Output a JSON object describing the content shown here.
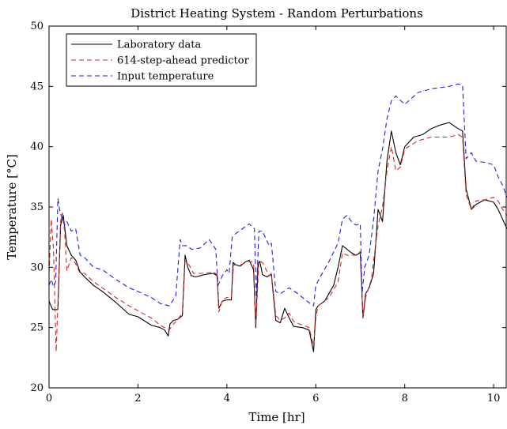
{
  "chart_data": {
    "type": "line",
    "title": "District Heating System - Random Perturbations",
    "xlabel": "Time [hr]",
    "ylabel": "Temperature [°C]",
    "xlim": [
      0,
      10.3
    ],
    "ylim": [
      20,
      50
    ],
    "xticks": [
      0,
      2,
      4,
      6,
      8,
      10
    ],
    "yticks": [
      20,
      25,
      30,
      35,
      40,
      45,
      50
    ],
    "xtick_labels": [
      "0",
      "2",
      "4",
      "6",
      "8",
      "10"
    ],
    "ytick_labels": [
      "20",
      "25",
      "30",
      "35",
      "40",
      "45",
      "50"
    ],
    "grid": false,
    "legend_position": "top-left",
    "series": [
      {
        "name": "Laboratory data",
        "color": "#000000",
        "style": "solid",
        "x": [
          0,
          0.08,
          0.2,
          0.26,
          0.32,
          0.4,
          0.5,
          0.6,
          0.7,
          0.8,
          1.0,
          1.2,
          1.5,
          1.8,
          2.0,
          2.3,
          2.5,
          2.6,
          2.68,
          2.72,
          2.8,
          2.9,
          3.0,
          3.06,
          3.12,
          3.2,
          3.3,
          3.5,
          3.7,
          3.78,
          3.82,
          3.9,
          4.0,
          4.1,
          4.14,
          4.2,
          4.3,
          4.4,
          4.5,
          4.6,
          4.65,
          4.7,
          4.74,
          4.8,
          4.9,
          5.0,
          5.1,
          5.2,
          5.3,
          5.4,
          5.5,
          5.7,
          5.85,
          5.95,
          6.0,
          6.05,
          6.2,
          6.4,
          6.5,
          6.6,
          6.7,
          6.8,
          6.9,
          7.0,
          7.06,
          7.12,
          7.2,
          7.3,
          7.4,
          7.5,
          7.6,
          7.7,
          7.8,
          7.9,
          8.0,
          8.2,
          8.4,
          8.6,
          8.8,
          9.0,
          9.2,
          9.3,
          9.38,
          9.5,
          9.6,
          9.8,
          10.0,
          10.1,
          10.2,
          10.3
        ],
        "values": [
          27.2,
          26.5,
          26.5,
          33.5,
          34.3,
          31.8,
          31.0,
          30.6,
          29.6,
          29.2,
          28.5,
          28.0,
          27.1,
          26.1,
          25.9,
          25.2,
          25.0,
          24.8,
          24.3,
          25.3,
          25.6,
          25.7,
          26.0,
          31.0,
          30.0,
          29.3,
          29.2,
          29.4,
          29.5,
          29.3,
          26.6,
          27.2,
          27.3,
          27.3,
          30.4,
          30.2,
          30.1,
          30.4,
          30.6,
          29.8,
          25.0,
          30.3,
          30.5,
          29.4,
          29.2,
          29.4,
          25.6,
          25.4,
          26.6,
          25.8,
          25.1,
          25.0,
          24.8,
          23.0,
          26.5,
          26.8,
          27.2,
          28.5,
          30.0,
          31.8,
          31.5,
          31.2,
          31.0,
          31.2,
          25.8,
          27.8,
          28.3,
          29.5,
          34.8,
          33.8,
          38.8,
          41.3,
          39.5,
          38.5,
          40.0,
          40.8,
          41.0,
          41.5,
          41.8,
          42.0,
          41.5,
          41.3,
          36.5,
          34.8,
          35.2,
          35.6,
          35.4,
          34.8,
          34.0,
          33.2
        ]
      },
      {
        "name": "614-step-ahead predictor",
        "color": "#d62728",
        "style": "dashed",
        "x": [
          0,
          0.05,
          0.1,
          0.16,
          0.2,
          0.26,
          0.3,
          0.35,
          0.4,
          0.5,
          0.6,
          0.7,
          0.8,
          1.0,
          1.2,
          1.5,
          1.8,
          2.0,
          2.3,
          2.5,
          2.7,
          2.8,
          2.9,
          3.0,
          3.06,
          3.15,
          3.25,
          3.5,
          3.7,
          3.78,
          3.82,
          3.9,
          4.0,
          4.1,
          4.15,
          4.3,
          4.5,
          4.6,
          4.65,
          4.72,
          4.8,
          4.95,
          5.0,
          5.1,
          5.2,
          5.3,
          5.4,
          5.5,
          5.7,
          5.85,
          5.95,
          6.0,
          6.05,
          6.3,
          6.5,
          6.6,
          6.7,
          6.8,
          6.9,
          7.0,
          7.06,
          7.12,
          7.25,
          7.4,
          7.5,
          7.6,
          7.7,
          7.8,
          7.9,
          8.0,
          8.3,
          8.6,
          9.0,
          9.2,
          9.3,
          9.38,
          9.5,
          9.6,
          9.8,
          10.0,
          10.1,
          10.2,
          10.3
        ],
        "values": [
          29.5,
          34.0,
          31.5,
          23.0,
          27.0,
          33.8,
          34.5,
          33.0,
          29.7,
          30.8,
          30.3,
          29.5,
          29.5,
          28.8,
          28.3,
          27.5,
          26.8,
          26.4,
          25.8,
          25.2,
          24.8,
          25.3,
          25.7,
          26.2,
          30.5,
          30.2,
          29.5,
          29.5,
          29.6,
          29.4,
          26.3,
          27.3,
          27.5,
          27.5,
          30.2,
          30.2,
          30.5,
          30.4,
          25.2,
          30.5,
          30.4,
          29.3,
          29.5,
          26.0,
          25.6,
          25.8,
          26.2,
          25.5,
          25.2,
          25.0,
          23.5,
          25.8,
          26.8,
          27.5,
          28.8,
          31.2,
          31.0,
          31.0,
          31.0,
          31.3,
          25.8,
          27.5,
          29.0,
          33.5,
          35.0,
          38.0,
          40.0,
          38.0,
          38.3,
          39.8,
          40.5,
          40.8,
          40.8,
          41.0,
          40.8,
          36.0,
          34.8,
          35.5,
          35.6,
          35.8,
          35.5,
          34.8,
          34.3
        ]
      },
      {
        "name": "Input temperature",
        "color": "#1f1fe0",
        "style": "dashed",
        "x": [
          0,
          0.05,
          0.1,
          0.15,
          0.2,
          0.25,
          0.3,
          0.35,
          0.4,
          0.5,
          0.6,
          0.7,
          0.8,
          1.0,
          1.2,
          1.5,
          1.8,
          2.0,
          2.3,
          2.5,
          2.7,
          2.85,
          2.95,
          3.0,
          3.1,
          3.2,
          3.4,
          3.6,
          3.75,
          3.8,
          3.9,
          4.0,
          4.05,
          4.12,
          4.2,
          4.35,
          4.5,
          4.62,
          4.66,
          4.72,
          4.8,
          4.95,
          5.0,
          5.1,
          5.2,
          5.4,
          5.6,
          5.8,
          5.95,
          6.0,
          6.1,
          6.3,
          6.5,
          6.6,
          6.7,
          6.8,
          6.9,
          7.0,
          7.04,
          7.1,
          7.2,
          7.3,
          7.4,
          7.5,
          7.6,
          7.7,
          7.8,
          8.0,
          8.3,
          8.6,
          9.0,
          9.2,
          9.3,
          9.38,
          9.5,
          9.6,
          9.8,
          10.0,
          10.1,
          10.2,
          10.3
        ],
        "values": [
          28.5,
          29.0,
          28.4,
          28.8,
          35.7,
          34.5,
          34.0,
          33.5,
          33.8,
          33.0,
          33.2,
          31.0,
          30.8,
          30.0,
          29.8,
          29.0,
          28.3,
          28.0,
          27.5,
          27.0,
          26.8,
          27.6,
          32.3,
          31.8,
          31.8,
          31.5,
          31.6,
          32.3,
          31.5,
          28.5,
          29.3,
          29.8,
          29.5,
          32.5,
          32.8,
          33.2,
          33.6,
          33.2,
          27.5,
          33.0,
          33.0,
          31.8,
          32.0,
          28.0,
          27.8,
          28.3,
          27.8,
          27.2,
          26.8,
          28.5,
          29.2,
          30.5,
          32.0,
          34.0,
          34.3,
          33.8,
          33.5,
          33.6,
          27.8,
          30.0,
          31.0,
          34.0,
          38.0,
          39.8,
          42.3,
          43.8,
          44.2,
          43.5,
          44.5,
          44.8,
          45.0,
          45.2,
          45.1,
          39.0,
          39.5,
          38.8,
          38.7,
          38.5,
          37.5,
          36.8,
          35.8
        ]
      }
    ]
  }
}
